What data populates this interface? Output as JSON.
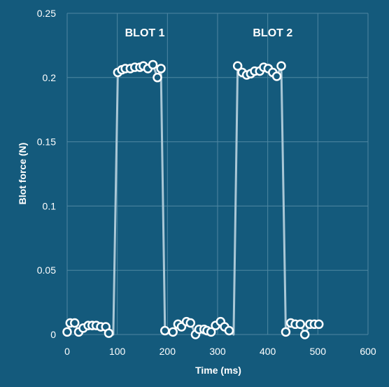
{
  "chart_data": {
    "type": "line",
    "title": "",
    "xlabel": "Time (ms)",
    "ylabel": "Blot force (N)",
    "xlim": [
      0,
      600
    ],
    "ylim": [
      0,
      0.25
    ],
    "x_ticks": [
      0,
      100,
      200,
      300,
      400,
      500,
      600
    ],
    "y_ticks": [
      0,
      0.05,
      0.1,
      0.15,
      0.2,
      0.25
    ],
    "x_tick_labels": [
      "0",
      "100",
      "200",
      "300",
      "400",
      "500",
      "600"
    ],
    "y_tick_labels": [
      "0",
      "0.05",
      "0.1",
      "0.15",
      "0.2",
      "0.25"
    ],
    "grid": true,
    "annotations": [
      {
        "text": "BLOT 1",
        "x": 155,
        "y": 0.232
      },
      {
        "text": "BLOT 2",
        "x": 410,
        "y": 0.232
      }
    ],
    "series": [
      {
        "x": [
          0,
          6,
          15,
          23,
          32,
          42,
          50,
          58,
          67,
          77,
          83,
          92,
          101,
          109,
          116,
          126,
          135,
          145,
          152,
          161,
          171,
          180,
          187,
          195,
          202,
          211,
          221,
          228,
          238,
          246,
          256,
          263,
          273,
          279,
          287,
          296,
          306,
          314,
          323,
          332,
          340,
          349,
          358,
          366,
          374,
          384,
          392,
          401,
          410,
          418,
          427,
          436,
          446,
          455,
          465,
          474,
          484,
          493,
          502
        ],
        "y": [
          0.002,
          0.009,
          0.009,
          0.002,
          0.005,
          0.007,
          0.007,
          0.007,
          0.006,
          0.006,
          0.001,
          0.0,
          0.204,
          0.206,
          0.207,
          0.207,
          0.208,
          0.208,
          0.209,
          0.207,
          0.21,
          0.2,
          0.207,
          0.003,
          0.002,
          0.002,
          0.008,
          0.006,
          0.01,
          0.009,
          0.0,
          0.004,
          0.004,
          0.003,
          0.002,
          0.007,
          0.01,
          0.006,
          0.003,
          0.0,
          0.209,
          0.204,
          0.202,
          0.203,
          0.205,
          0.205,
          0.208,
          0.207,
          0.204,
          0.201,
          0.209,
          0.002,
          0.009,
          0.008,
          0.008,
          0.0,
          0.008,
          0.008,
          0.008
        ],
        "markers": [
          true,
          true,
          true,
          true,
          true,
          true,
          true,
          true,
          true,
          true,
          true,
          false,
          true,
          true,
          true,
          true,
          true,
          true,
          true,
          true,
          true,
          true,
          true,
          true,
          false,
          true,
          true,
          true,
          true,
          true,
          true,
          true,
          true,
          true,
          true,
          true,
          true,
          true,
          true,
          false,
          true,
          true,
          true,
          true,
          true,
          true,
          true,
          true,
          true,
          true,
          true,
          true,
          true,
          true,
          true,
          true,
          true,
          true,
          true
        ],
        "line_color": "#a9c7d6",
        "marker_stroke": "#ffffff",
        "marker_fill": "#145a7c"
      }
    ],
    "colors": {
      "background": "#145a7c",
      "grid": "#4f87a2",
      "text": "#ffffff"
    }
  }
}
